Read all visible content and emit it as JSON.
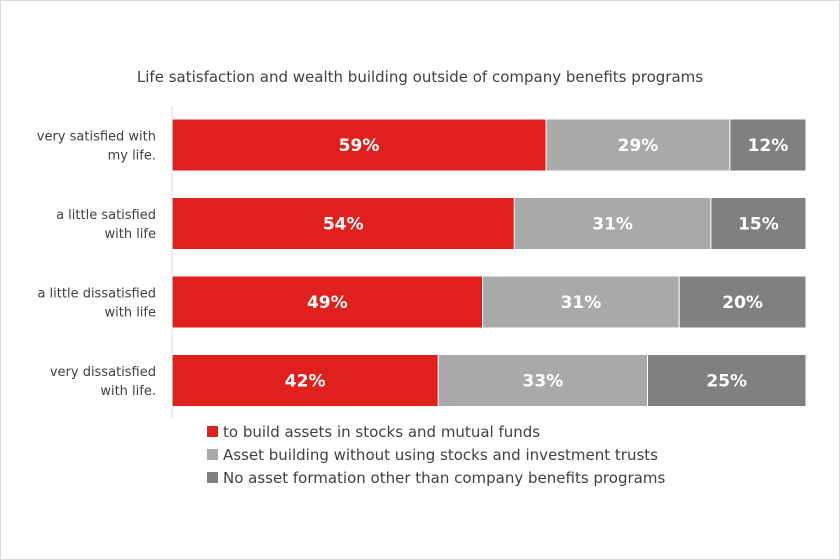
{
  "chart_data": {
    "type": "bar",
    "orientation": "horizontal",
    "stacked": true,
    "title": "Life satisfaction and wealth building outside of company benefits programs",
    "categories": [
      [
        "very satisfied with",
        "my life."
      ],
      [
        "a little satisfied",
        "with life"
      ],
      [
        "a little dissatisfied",
        "with life"
      ],
      [
        "very dissatisfied",
        "with life."
      ]
    ],
    "series": [
      {
        "name": "to build assets in stocks and mutual funds",
        "values": [
          59,
          54,
          49,
          42
        ],
        "labels": [
          "59%",
          "54%",
          "49%",
          "42%"
        ],
        "color": "#e0201c"
      },
      {
        "name": "Asset building without using stocks and investment trusts",
        "values": [
          29,
          31,
          31,
          33
        ],
        "labels": [
          "29%",
          "31%",
          "31%",
          "33%"
        ],
        "color": "#a9a9a9"
      },
      {
        "name": "No asset formation other than company benefits programs",
        "values": [
          12,
          15,
          20,
          25
        ],
        "labels": [
          "12%",
          "15%",
          "20%",
          "25%"
        ],
        "color": "#808080"
      }
    ],
    "xlim": [
      0,
      100
    ],
    "legend_position": "bottom-left"
  }
}
